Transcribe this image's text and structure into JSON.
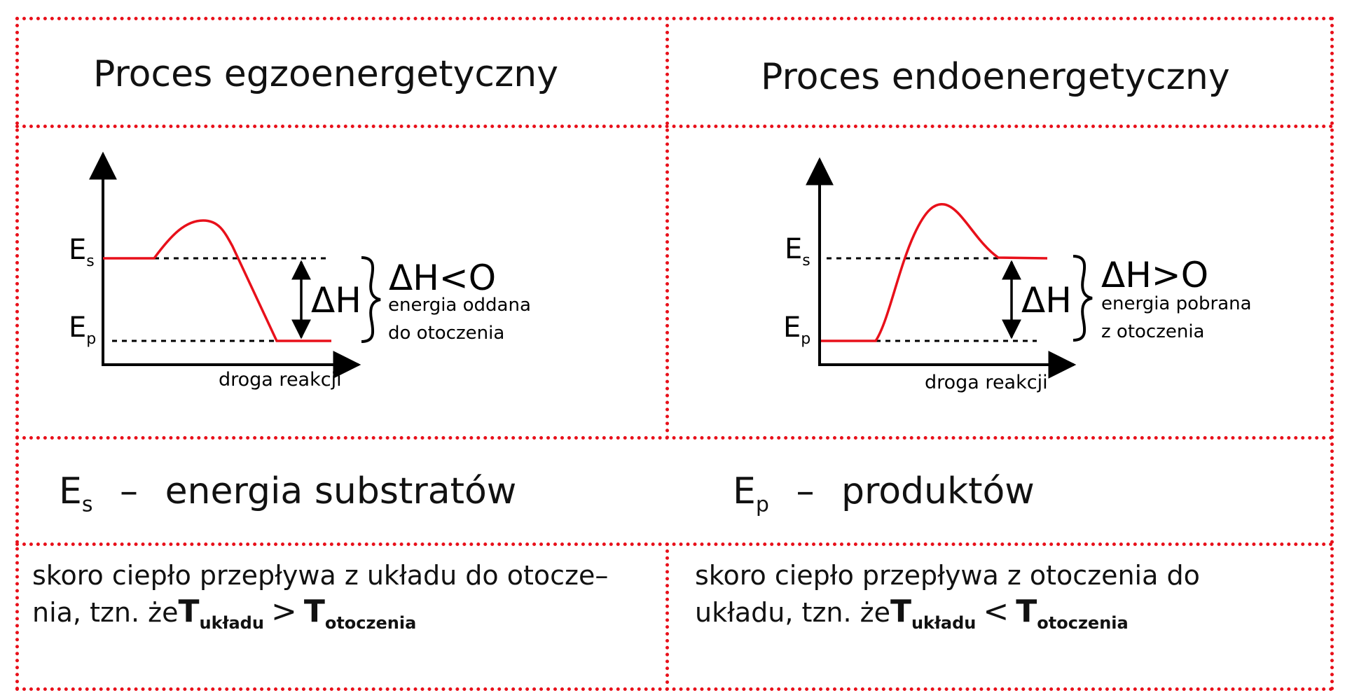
{
  "headers": {
    "left": "Proces egzoenergetyczny",
    "right": "Proces endoenergetyczny"
  },
  "diagrams": {
    "left": {
      "es_base": "E",
      "es_sub": "s",
      "ep_base": "E",
      "ep_sub": "p",
      "delta_label": "ΔH",
      "relation": "ΔH<O",
      "note_line1": "energia oddana",
      "note_line2": "do otoczenia",
      "xlabel": "droga reakcji"
    },
    "right": {
      "es_base": "E",
      "es_sub": "s",
      "ep_base": "E",
      "ep_sub": "p",
      "delta_label": "ΔH",
      "relation": "ΔH>O",
      "note_line1": "energia pobrana",
      "note_line2": "z otoczenia",
      "xlabel": "droga reakcji"
    }
  },
  "legend": {
    "left_base": "E",
    "left_sub": "s",
    "left_dash": "–",
    "left_text": "energia substratów",
    "right_base": "E",
    "right_sub": "p",
    "right_dash": "–",
    "right_text": "produktów"
  },
  "bottom": {
    "left_line1": "skoro ciepło przepływa z układu do otocze–",
    "left_line2_prefix": "nia, tzn. że",
    "left_comparator": ">",
    "right_line1": "skoro ciepło przepływa z otoczenia do",
    "right_line2_prefix": "układu, tzn. że",
    "right_comparator": "<",
    "t_symbol": "T",
    "t_sub_system": "układu",
    "t_sub_surroundings": "otoczenia"
  },
  "colors": {
    "border": "#e8101a",
    "curve": "#e8101a",
    "axis": "#000000"
  }
}
